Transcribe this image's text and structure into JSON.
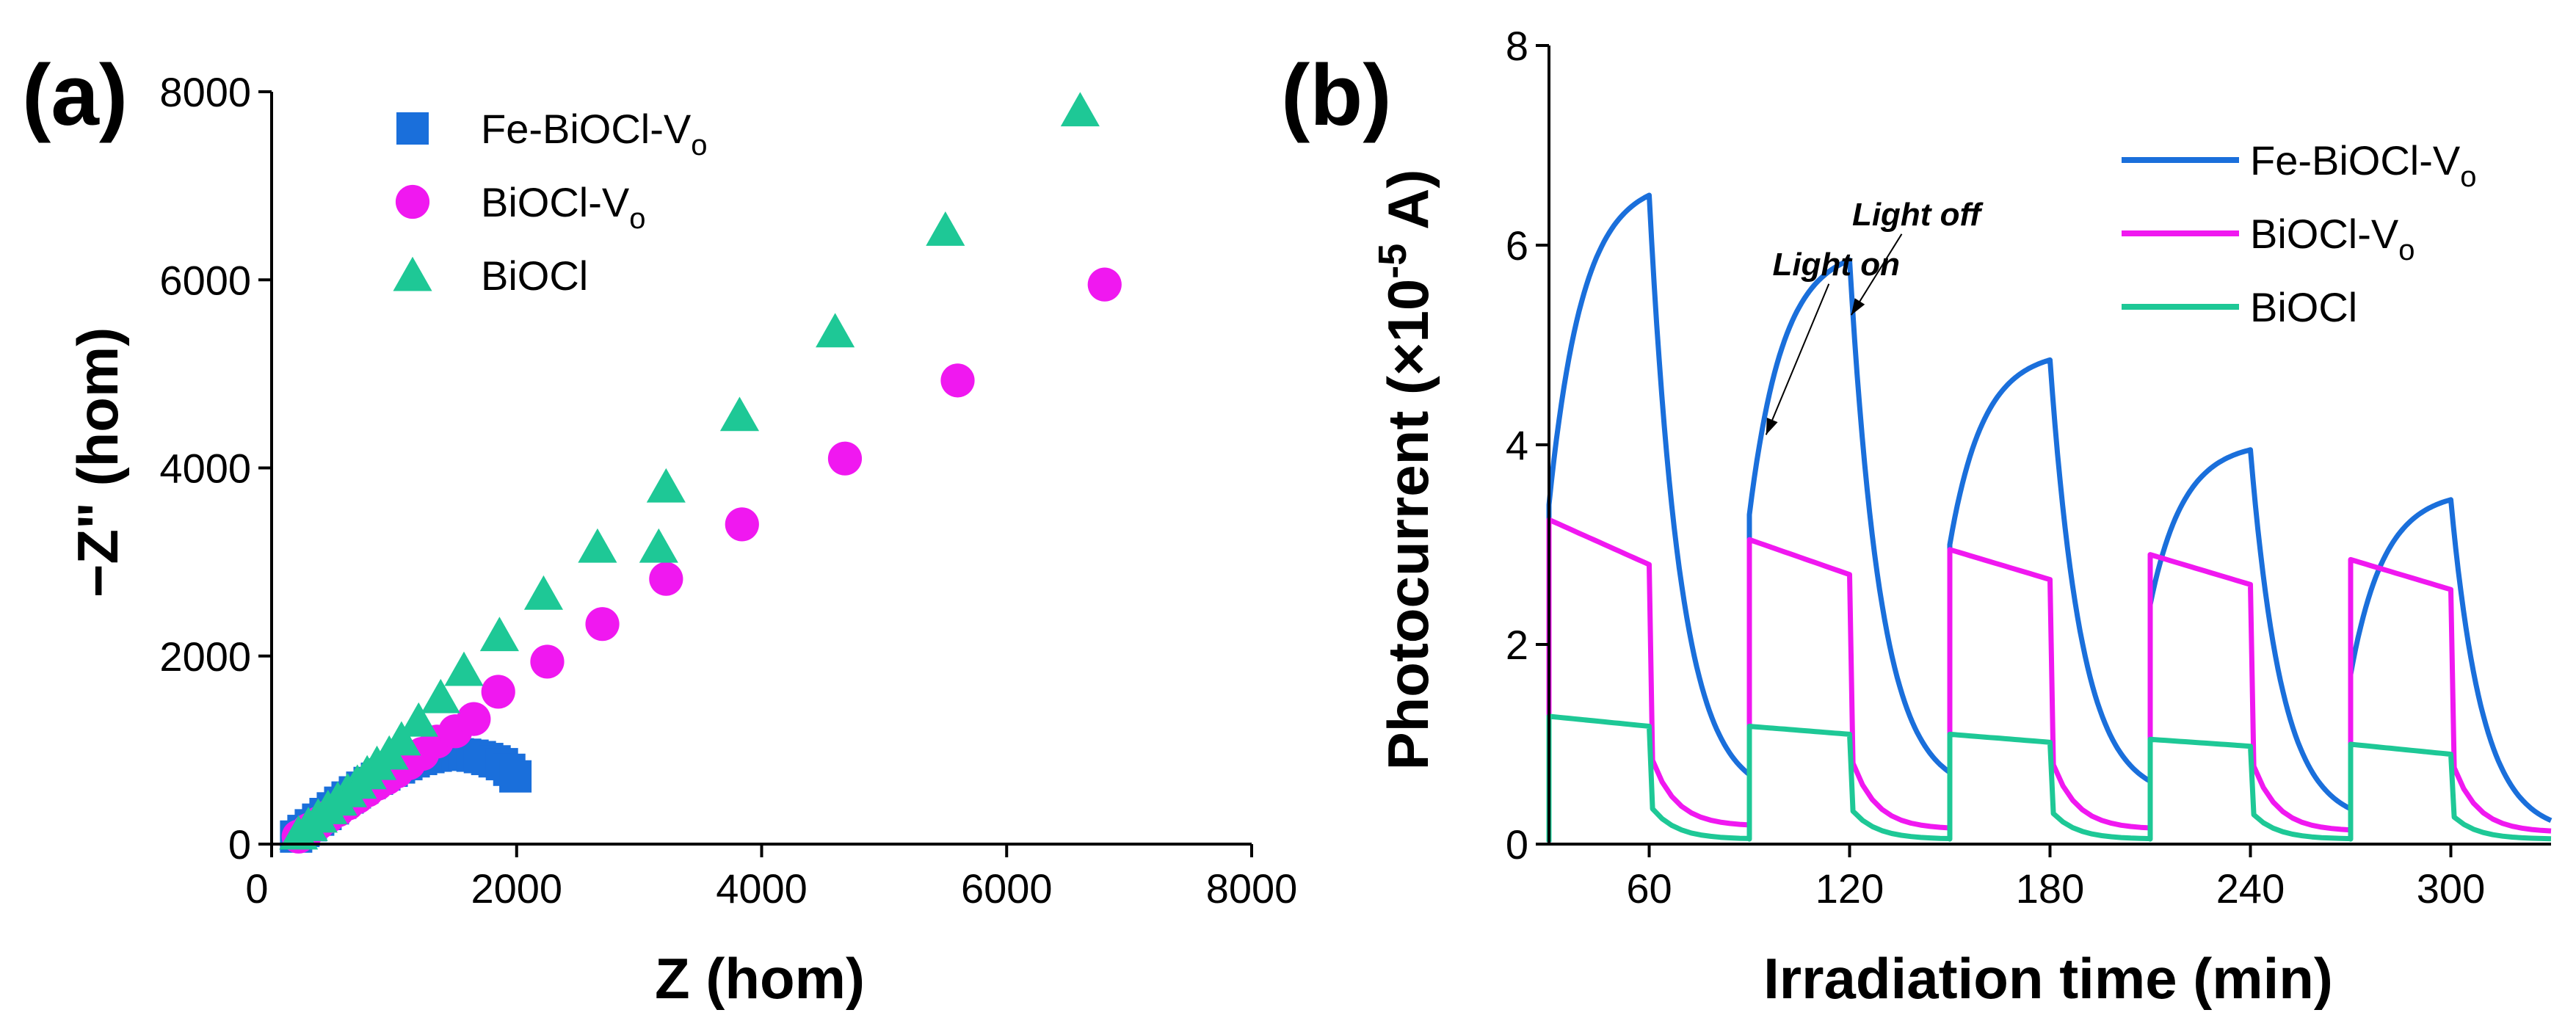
{
  "chart_data": [
    {
      "panel": "(a)",
      "type": "scatter",
      "title": "",
      "xlabel": "Z (hom)",
      "ylabel": "−Z\" (hom)",
      "xlim": [
        0,
        8000
      ],
      "ylim": [
        0,
        8000
      ],
      "xticks": [
        "0",
        "2000",
        "4000",
        "6000",
        "8000"
      ],
      "yticks": [
        "0",
        "2000",
        "4000",
        "6000",
        "8000"
      ],
      "legend_position": "top-left",
      "series": [
        {
          "name": "Fe-BiOCl-V",
          "subscript": "o",
          "marker": "square",
          "color": "#1a6fdb",
          "x": [
            200,
            260,
            320,
            380,
            440,
            500,
            560,
            620,
            680,
            740,
            800,
            860,
            920,
            980,
            1040,
            1100,
            1160,
            1220,
            1280,
            1340,
            1400,
            1460,
            1520,
            1580,
            1640,
            1700,
            1760,
            1820,
            1880,
            1940,
            1990
          ],
          "y": [
            80,
            140,
            200,
            260,
            320,
            380,
            440,
            495,
            550,
            600,
            650,
            695,
            740,
            780,
            815,
            850,
            880,
            905,
            925,
            940,
            950,
            955,
            955,
            950,
            940,
            925,
            905,
            880,
            850,
            790,
            720
          ]
        },
        {
          "name": "BiOCl-V",
          "subscript": "o",
          "marker": "circle",
          "color": "#f018f0",
          "x": [
            220,
            300,
            380,
            460,
            540,
            620,
            700,
            780,
            860,
            940,
            1020,
            1120,
            1230,
            1350,
            1500,
            1650,
            1850,
            2250,
            2700,
            3220,
            3840,
            4680,
            5600,
            6800
          ],
          "y": [
            80,
            150,
            220,
            290,
            360,
            430,
            500,
            570,
            640,
            700,
            770,
            860,
            960,
            1090,
            1200,
            1330,
            1620,
            1940,
            2340,
            2820,
            3400,
            4100,
            4930,
            5950
          ]
        },
        {
          "name": "BiOCl",
          "subscript": "",
          "marker": "triangle",
          "color": "#1ec896",
          "x": [
            220,
            300,
            380,
            460,
            540,
            620,
            700,
            780,
            860,
            960,
            1060,
            1200,
            1380,
            1570,
            1860,
            2220,
            2660,
            3160,
            3220,
            3820,
            4600,
            5500,
            6600
          ],
          "y": [
            110,
            200,
            290,
            380,
            470,
            560,
            650,
            750,
            850,
            960,
            1110,
            1310,
            1560,
            1850,
            2220,
            2660,
            3160,
            3160,
            3800,
            4560,
            5450,
            6530,
            7800
          ]
        }
      ]
    },
    {
      "panel": "(b)",
      "type": "line",
      "title": "",
      "xlabel": "Irradiation time (min)",
      "ylabel_main": "Photocurrent (×10",
      "ylabel_exp": "-5",
      "ylabel_end": " A)",
      "xlim": [
        30,
        330
      ],
      "ylim": [
        0,
        8
      ],
      "xticks": [
        "60",
        "120",
        "180",
        "240",
        "300"
      ],
      "yticks": [
        "0",
        "2",
        "4",
        "6",
        "8"
      ],
      "legend_position": "top-right",
      "annotations": [
        {
          "text": "Light on",
          "x": 116,
          "y": 5.7,
          "arrow_to": [
            95,
            4.1
          ]
        },
        {
          "text": "Light off",
          "x": 140,
          "y": 6.2,
          "arrow_to": [
            120.5,
            5.3
          ]
        }
      ],
      "light_periods": [
        [
          30,
          60
        ],
        [
          90,
          120
        ],
        [
          150,
          180
        ],
        [
          210,
          240
        ],
        [
          270,
          300
        ]
      ],
      "series": [
        {
          "name": "Fe-BiOCl-V",
          "subscript": "o",
          "color": "#1a6fdb",
          "on_start": [
            3.4,
            3.3,
            3.0,
            2.4,
            1.7
          ],
          "on_peak": [
            6.5,
            5.85,
            4.85,
            3.95,
            3.45
          ],
          "off_level": [
            0.45,
            0.5,
            0.45,
            0.2,
            0.1
          ]
        },
        {
          "name": "BiOCl-V",
          "subscript": "o",
          "color": "#f018f0",
          "on_start": [
            3.25,
            3.05,
            2.95,
            2.9,
            2.85
          ],
          "on_end": [
            2.8,
            2.7,
            2.65,
            2.6,
            2.55
          ],
          "off_level": [
            0.18,
            0.15,
            0.15,
            0.13,
            0.12
          ]
        },
        {
          "name": "BiOCl",
          "subscript": "",
          "color": "#1ec896",
          "on_start": [
            1.28,
            1.18,
            1.1,
            1.05,
            1.0
          ],
          "on_end": [
            1.18,
            1.1,
            1.02,
            0.98,
            0.9
          ],
          "off_level": [
            0.05,
            0.05,
            0.05,
            0.05,
            0.05
          ]
        }
      ]
    }
  ]
}
